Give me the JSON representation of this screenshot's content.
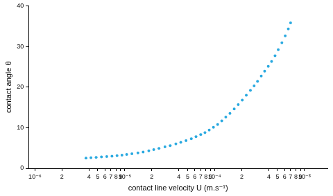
{
  "chart_data": {
    "type": "scatter",
    "x_label": "contact line velocity U (m.s⁻¹)",
    "y_label": "contact angle θ",
    "x": [
      3.7e-06,
      4.2e-06,
      4.8e-06,
      5.5e-06,
      6.3e-06,
      7.2e-06,
      8.2e-06,
      9.3e-06,
      1.05e-05,
      1.2e-05,
      1.4e-05,
      1.6e-05,
      1.85e-05,
      2.1e-05,
      2.4e-05,
      2.8e-05,
      3.2e-05,
      3.7e-05,
      4.2e-05,
      4.8e-05,
      5.5e-05,
      6.2e-05,
      7e-05,
      7.8e-05,
      8.7e-05,
      9.7e-05,
      0.000108,
      0.00012,
      0.000133,
      0.000148,
      0.000165,
      0.000183,
      0.000203,
      0.000225,
      0.00025,
      0.000275,
      0.0003,
      0.00033,
      0.00036,
      0.000395,
      0.00043,
      0.00047,
      0.00051,
      0.00056,
      0.00061,
      0.00066,
      0.0007
    ],
    "values": [
      2.5,
      2.6,
      2.7,
      2.8,
      2.9,
      3.0,
      3.1,
      3.25,
      3.4,
      3.6,
      3.8,
      4.0,
      4.3,
      4.6,
      4.9,
      5.3,
      5.6,
      6.0,
      6.4,
      6.8,
      7.3,
      7.8,
      8.3,
      8.8,
      9.4,
      10.1,
      10.8,
      11.7,
      12.6,
      13.5,
      14.6,
      15.7,
      16.8,
      18.0,
      19.2,
      20.3,
      21.4,
      22.7,
      23.9,
      25.1,
      26.3,
      27.7,
      29.2,
      30.9,
      32.6,
      34.3,
      35.8
    ],
    "color": "#29a9e0",
    "marker": "circle",
    "log": "x",
    "grid": false,
    "xlim": [
      8.5e-07,
      0.0018
    ],
    "xticks": [
      {
        "value": 1e-06,
        "label": "10⁻⁶"
      },
      {
        "value": 2e-06,
        "label": "2"
      },
      {
        "value": 4e-06,
        "label": "4"
      },
      {
        "value": 5e-06,
        "label": "5"
      },
      {
        "value": 6e-06,
        "label": "6"
      },
      {
        "value": 7e-06,
        "label": "7"
      },
      {
        "value": 8e-06,
        "label": "8"
      },
      {
        "value": 9e-06,
        "label": "9"
      },
      {
        "value": 1e-05,
        "label": "10⁻⁵"
      },
      {
        "value": 2e-05,
        "label": "2"
      },
      {
        "value": 4e-05,
        "label": "4"
      },
      {
        "value": 5e-05,
        "label": "5"
      },
      {
        "value": 6e-05,
        "label": "6"
      },
      {
        "value": 7e-05,
        "label": "7"
      },
      {
        "value": 8e-05,
        "label": "8"
      },
      {
        "value": 9e-05,
        "label": "9"
      },
      {
        "value": 0.0001,
        "label": "10⁻⁴"
      },
      {
        "value": 0.0002,
        "label": "2"
      },
      {
        "value": 0.0004,
        "label": "4"
      },
      {
        "value": 0.0005,
        "label": "5"
      },
      {
        "value": 0.0006,
        "label": "6"
      },
      {
        "value": 0.0007,
        "label": "7"
      },
      {
        "value": 0.0008,
        "label": "8"
      },
      {
        "value": 0.0009,
        "label": "9"
      },
      {
        "value": 0.001,
        "label": "10⁻³"
      }
    ],
    "ylim": [
      0,
      40
    ],
    "yticks": [
      0,
      10,
      20,
      30,
      40
    ]
  }
}
